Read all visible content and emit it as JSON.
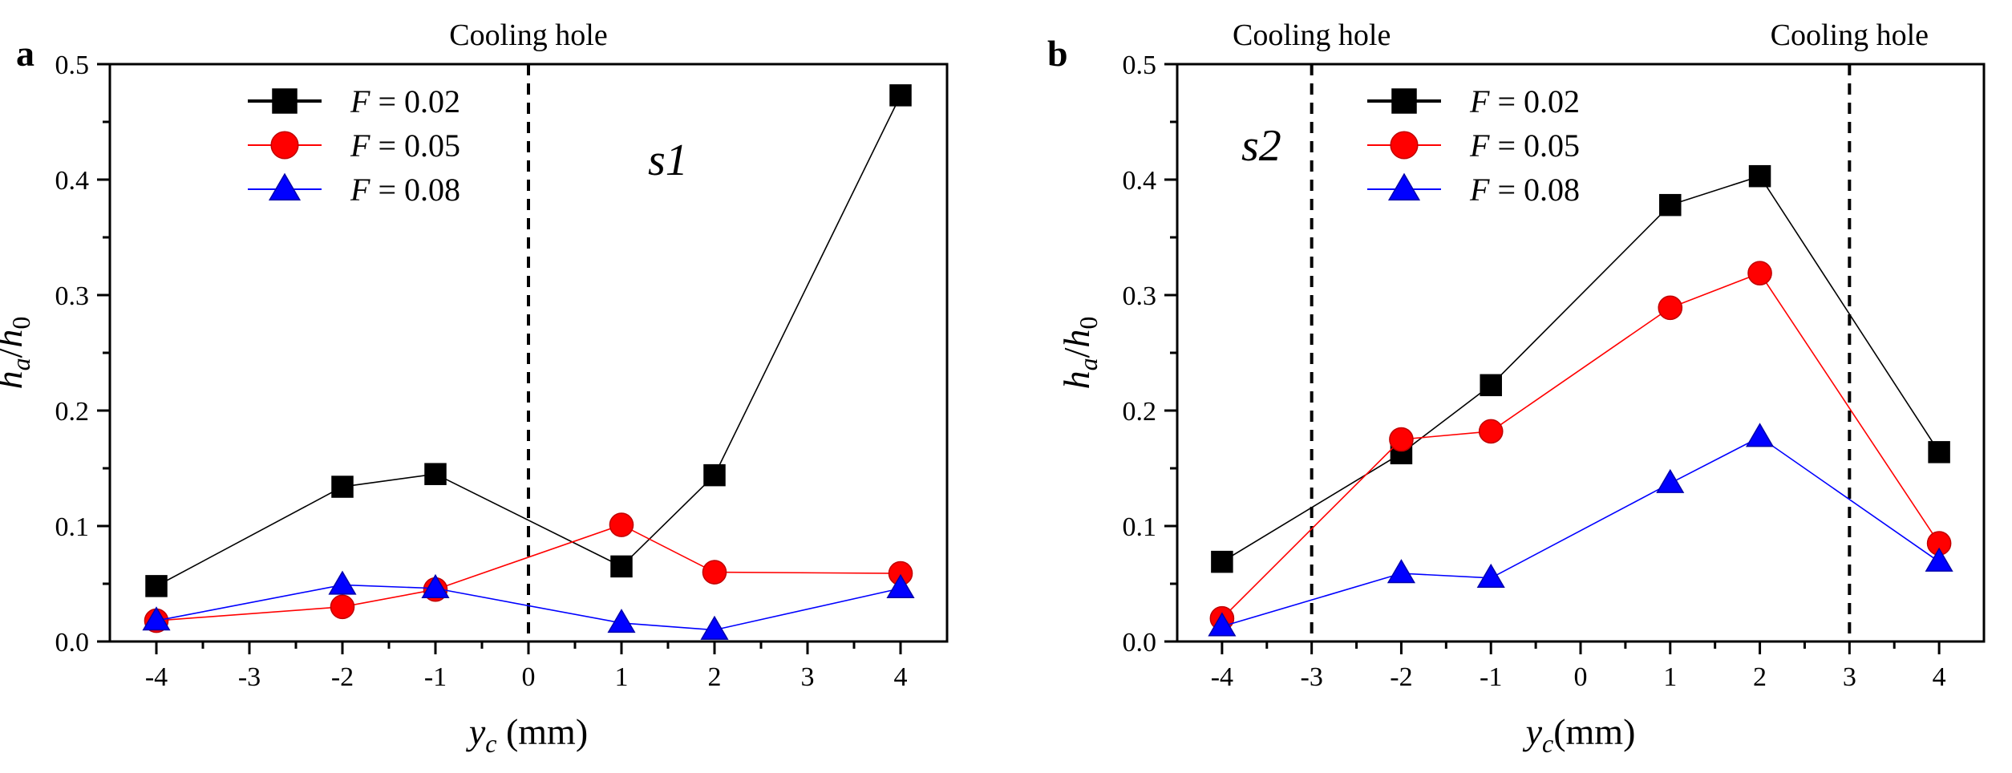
{
  "chart_data": [
    {
      "type": "line",
      "panel_label": "a",
      "tag": "s1",
      "xlabel": "y_c (mm)",
      "xlabel_parts": {
        "var": "y",
        "sub": "c",
        "unit": " (mm)"
      },
      "ylabel": "h_a/h_0",
      "xlim": [
        -4.5,
        4.5
      ],
      "ylim": [
        0,
        0.5
      ],
      "xticks": [
        -4,
        -3,
        -2,
        -1,
        0,
        1,
        2,
        3,
        4
      ],
      "xtick_labels": [
        "-4",
        "-3",
        "-2",
        "-1",
        "0",
        "1",
        "2",
        "3",
        "4"
      ],
      "yticks": [
        0,
        0.1,
        0.2,
        0.3,
        0.4,
        0.5
      ],
      "ytick_labels": [
        "0.0",
        "0.1",
        "0.2",
        "0.3",
        "0.4",
        "0.5"
      ],
      "annotations": [
        {
          "text": "Cooling hole",
          "x": 0
        }
      ],
      "vlines": [
        0
      ],
      "legend_position": "top-left",
      "series": [
        {
          "name": "F = 0.02",
          "name_parts": {
            "var": "F",
            "rest": " = 0.02"
          },
          "color": "#000000",
          "marker": "square",
          "x": [
            -4,
            -2,
            -1,
            1,
            2,
            4
          ],
          "y": [
            0.048,
            0.134,
            0.145,
            0.065,
            0.144,
            0.473
          ]
        },
        {
          "name": "F = 0.05",
          "name_parts": {
            "var": "F",
            "rest": " = 0.05"
          },
          "color": "#ff0000",
          "marker": "circle",
          "x": [
            -4,
            -2,
            -1,
            1,
            2,
            4
          ],
          "y": [
            0.018,
            0.03,
            0.045,
            0.101,
            0.06,
            0.059
          ]
        },
        {
          "name": "F = 0.08",
          "name_parts": {
            "var": "F",
            "rest": " = 0.08"
          },
          "color": "#0000ff",
          "marker": "triangle",
          "x": [
            -4,
            -2,
            -1,
            1,
            2,
            4
          ],
          "y": [
            0.018,
            0.049,
            0.046,
            0.016,
            0.01,
            0.046
          ]
        }
      ]
    },
    {
      "type": "line",
      "panel_label": "b",
      "tag": "s2",
      "xlabel": "y_c(mm)",
      "xlabel_parts": {
        "var": "y",
        "sub": "c",
        "unit": "(mm)"
      },
      "ylabel": "h_a/h_0",
      "xlim": [
        -4.5,
        4.5
      ],
      "ylim": [
        0,
        0.5
      ],
      "xticks": [
        -4,
        -3,
        -2,
        -1,
        0,
        1,
        2,
        3,
        4
      ],
      "xtick_labels": [
        "-4",
        "-3",
        "-2",
        "-1",
        "0",
        "1",
        "2",
        "3",
        "4"
      ],
      "yticks": [
        0,
        0.1,
        0.2,
        0.3,
        0.4,
        0.5
      ],
      "ytick_labels": [
        "0.0",
        "0.1",
        "0.2",
        "0.3",
        "0.4",
        "0.5"
      ],
      "annotations": [
        {
          "text": "Cooling hole",
          "x": -3
        },
        {
          "text": "Cooling hole",
          "x": 3
        }
      ],
      "vlines": [
        -3,
        3
      ],
      "legend_position": "top-left",
      "series": [
        {
          "name": "F = 0.02",
          "name_parts": {
            "var": "F",
            "rest": " = 0.02"
          },
          "color": "#000000",
          "marker": "square",
          "x": [
            -4,
            -2,
            -1,
            1,
            2,
            4
          ],
          "y": [
            0.069,
            0.163,
            0.222,
            0.378,
            0.403,
            0.164
          ]
        },
        {
          "name": "F = 0.05",
          "name_parts": {
            "var": "F",
            "rest": " = 0.05"
          },
          "color": "#ff0000",
          "marker": "circle",
          "x": [
            -4,
            -2,
            -1,
            1,
            2,
            4
          ],
          "y": [
            0.02,
            0.175,
            0.182,
            0.289,
            0.319,
            0.085
          ]
        },
        {
          "name": "F = 0.08",
          "name_parts": {
            "var": "F",
            "rest": " = 0.08"
          },
          "color": "#0000ff",
          "marker": "triangle",
          "x": [
            -4,
            -2,
            -1,
            1,
            2,
            4
          ],
          "y": [
            0.013,
            0.059,
            0.055,
            0.137,
            0.177,
            0.069
          ]
        }
      ]
    }
  ]
}
